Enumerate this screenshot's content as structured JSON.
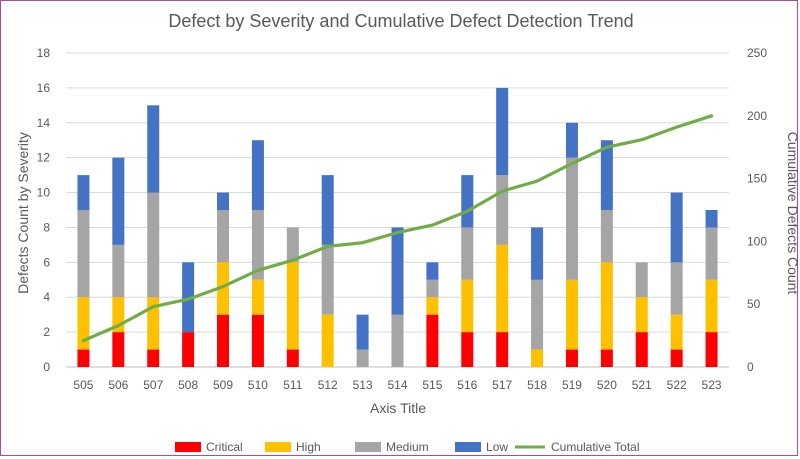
{
  "chart_data": {
    "type": "bar",
    "stacked": true,
    "title": "Defect by Severity and Cumulative Defect Detection Trend",
    "xlabel": "Axis Title",
    "ylabel": "Defects Count by Severity",
    "y2label": "Cumulative Defects Count",
    "ylim": [
      0,
      18
    ],
    "y_ticks": [
      0,
      2,
      4,
      6,
      8,
      10,
      12,
      14,
      16,
      18
    ],
    "y2lim": [
      0,
      250
    ],
    "y2_ticks": [
      0,
      50,
      100,
      150,
      200,
      250
    ],
    "grid": true,
    "legend_position": "bottom",
    "categories": [
      "505",
      "506",
      "507",
      "508",
      "509",
      "510",
      "511",
      "512",
      "513",
      "514",
      "515",
      "516",
      "517",
      "518",
      "519",
      "520",
      "521",
      "522",
      "523"
    ],
    "series": [
      {
        "name": "Critical",
        "color": "#ff0000",
        "values": [
          1,
          2,
          1,
          2,
          3,
          3,
          1,
          0,
          0,
          0,
          3,
          2,
          2,
          0,
          1,
          1,
          2,
          1,
          2
        ]
      },
      {
        "name": "High",
        "color": "#ffc000",
        "values": [
          3,
          2,
          3,
          0,
          3,
          2,
          5,
          3,
          0,
          0,
          1,
          3,
          5,
          1,
          4,
          5,
          2,
          2,
          3
        ]
      },
      {
        "name": "Medium",
        "color": "#a5a5a5",
        "values": [
          5,
          3,
          6,
          0,
          3,
          4,
          2,
          4,
          1,
          3,
          1,
          3,
          4,
          4,
          7,
          3,
          2,
          3,
          3
        ]
      },
      {
        "name": "Low",
        "color": "#4472c4",
        "values": [
          2,
          5,
          5,
          4,
          1,
          4,
          0,
          4,
          2,
          5,
          1,
          3,
          5,
          3,
          2,
          4,
          0,
          4,
          1
        ]
      }
    ],
    "line_series": {
      "name": "Cumulative Total",
      "color": "#70ad47",
      "axis": "secondary",
      "values": [
        21,
        33,
        48,
        54,
        64,
        77,
        85,
        96,
        99,
        107,
        113,
        124,
        140,
        148,
        162,
        175,
        181,
        191,
        200
      ]
    }
  }
}
